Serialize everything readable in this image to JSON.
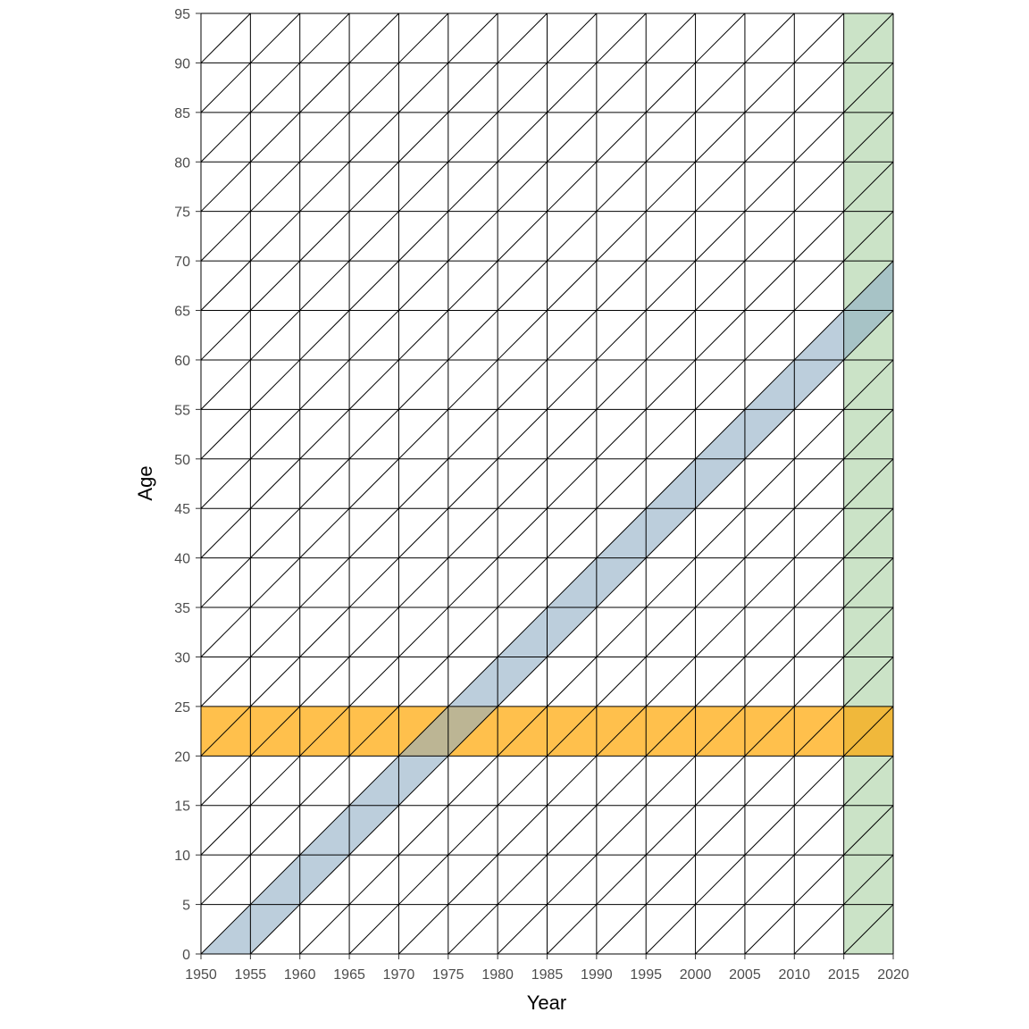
{
  "chart_data": {
    "type": "lexis-diagram",
    "title": "",
    "xlabel": "Year",
    "ylabel": "Age",
    "xlim": [
      1950,
      2020
    ],
    "ylim": [
      0,
      95
    ],
    "x_step": 5,
    "y_step": 5,
    "x_ticks": [
      "1950",
      "1955",
      "1960",
      "1965",
      "1970",
      "1975",
      "1980",
      "1985",
      "1990",
      "1995",
      "2000",
      "2005",
      "2010",
      "2015",
      "2020"
    ],
    "y_ticks": [
      "0",
      "5",
      "10",
      "15",
      "20",
      "25",
      "30",
      "35",
      "40",
      "45",
      "50",
      "55",
      "60",
      "65",
      "70",
      "75",
      "80",
      "85",
      "90",
      "95"
    ],
    "grid": true,
    "diagonals": true,
    "highlights": [
      {
        "kind": "period",
        "x_from": 2015,
        "x_to": 2020,
        "color": "#a9d1a2",
        "opacity": 0.6
      },
      {
        "kind": "age",
        "y_from": 20,
        "y_to": 25,
        "color": "#ffa500",
        "opacity": 0.7
      },
      {
        "kind": "cohort",
        "birth_from": 1950,
        "birth_to": 1955,
        "color": "#8fadc4",
        "opacity": 0.6
      }
    ]
  }
}
